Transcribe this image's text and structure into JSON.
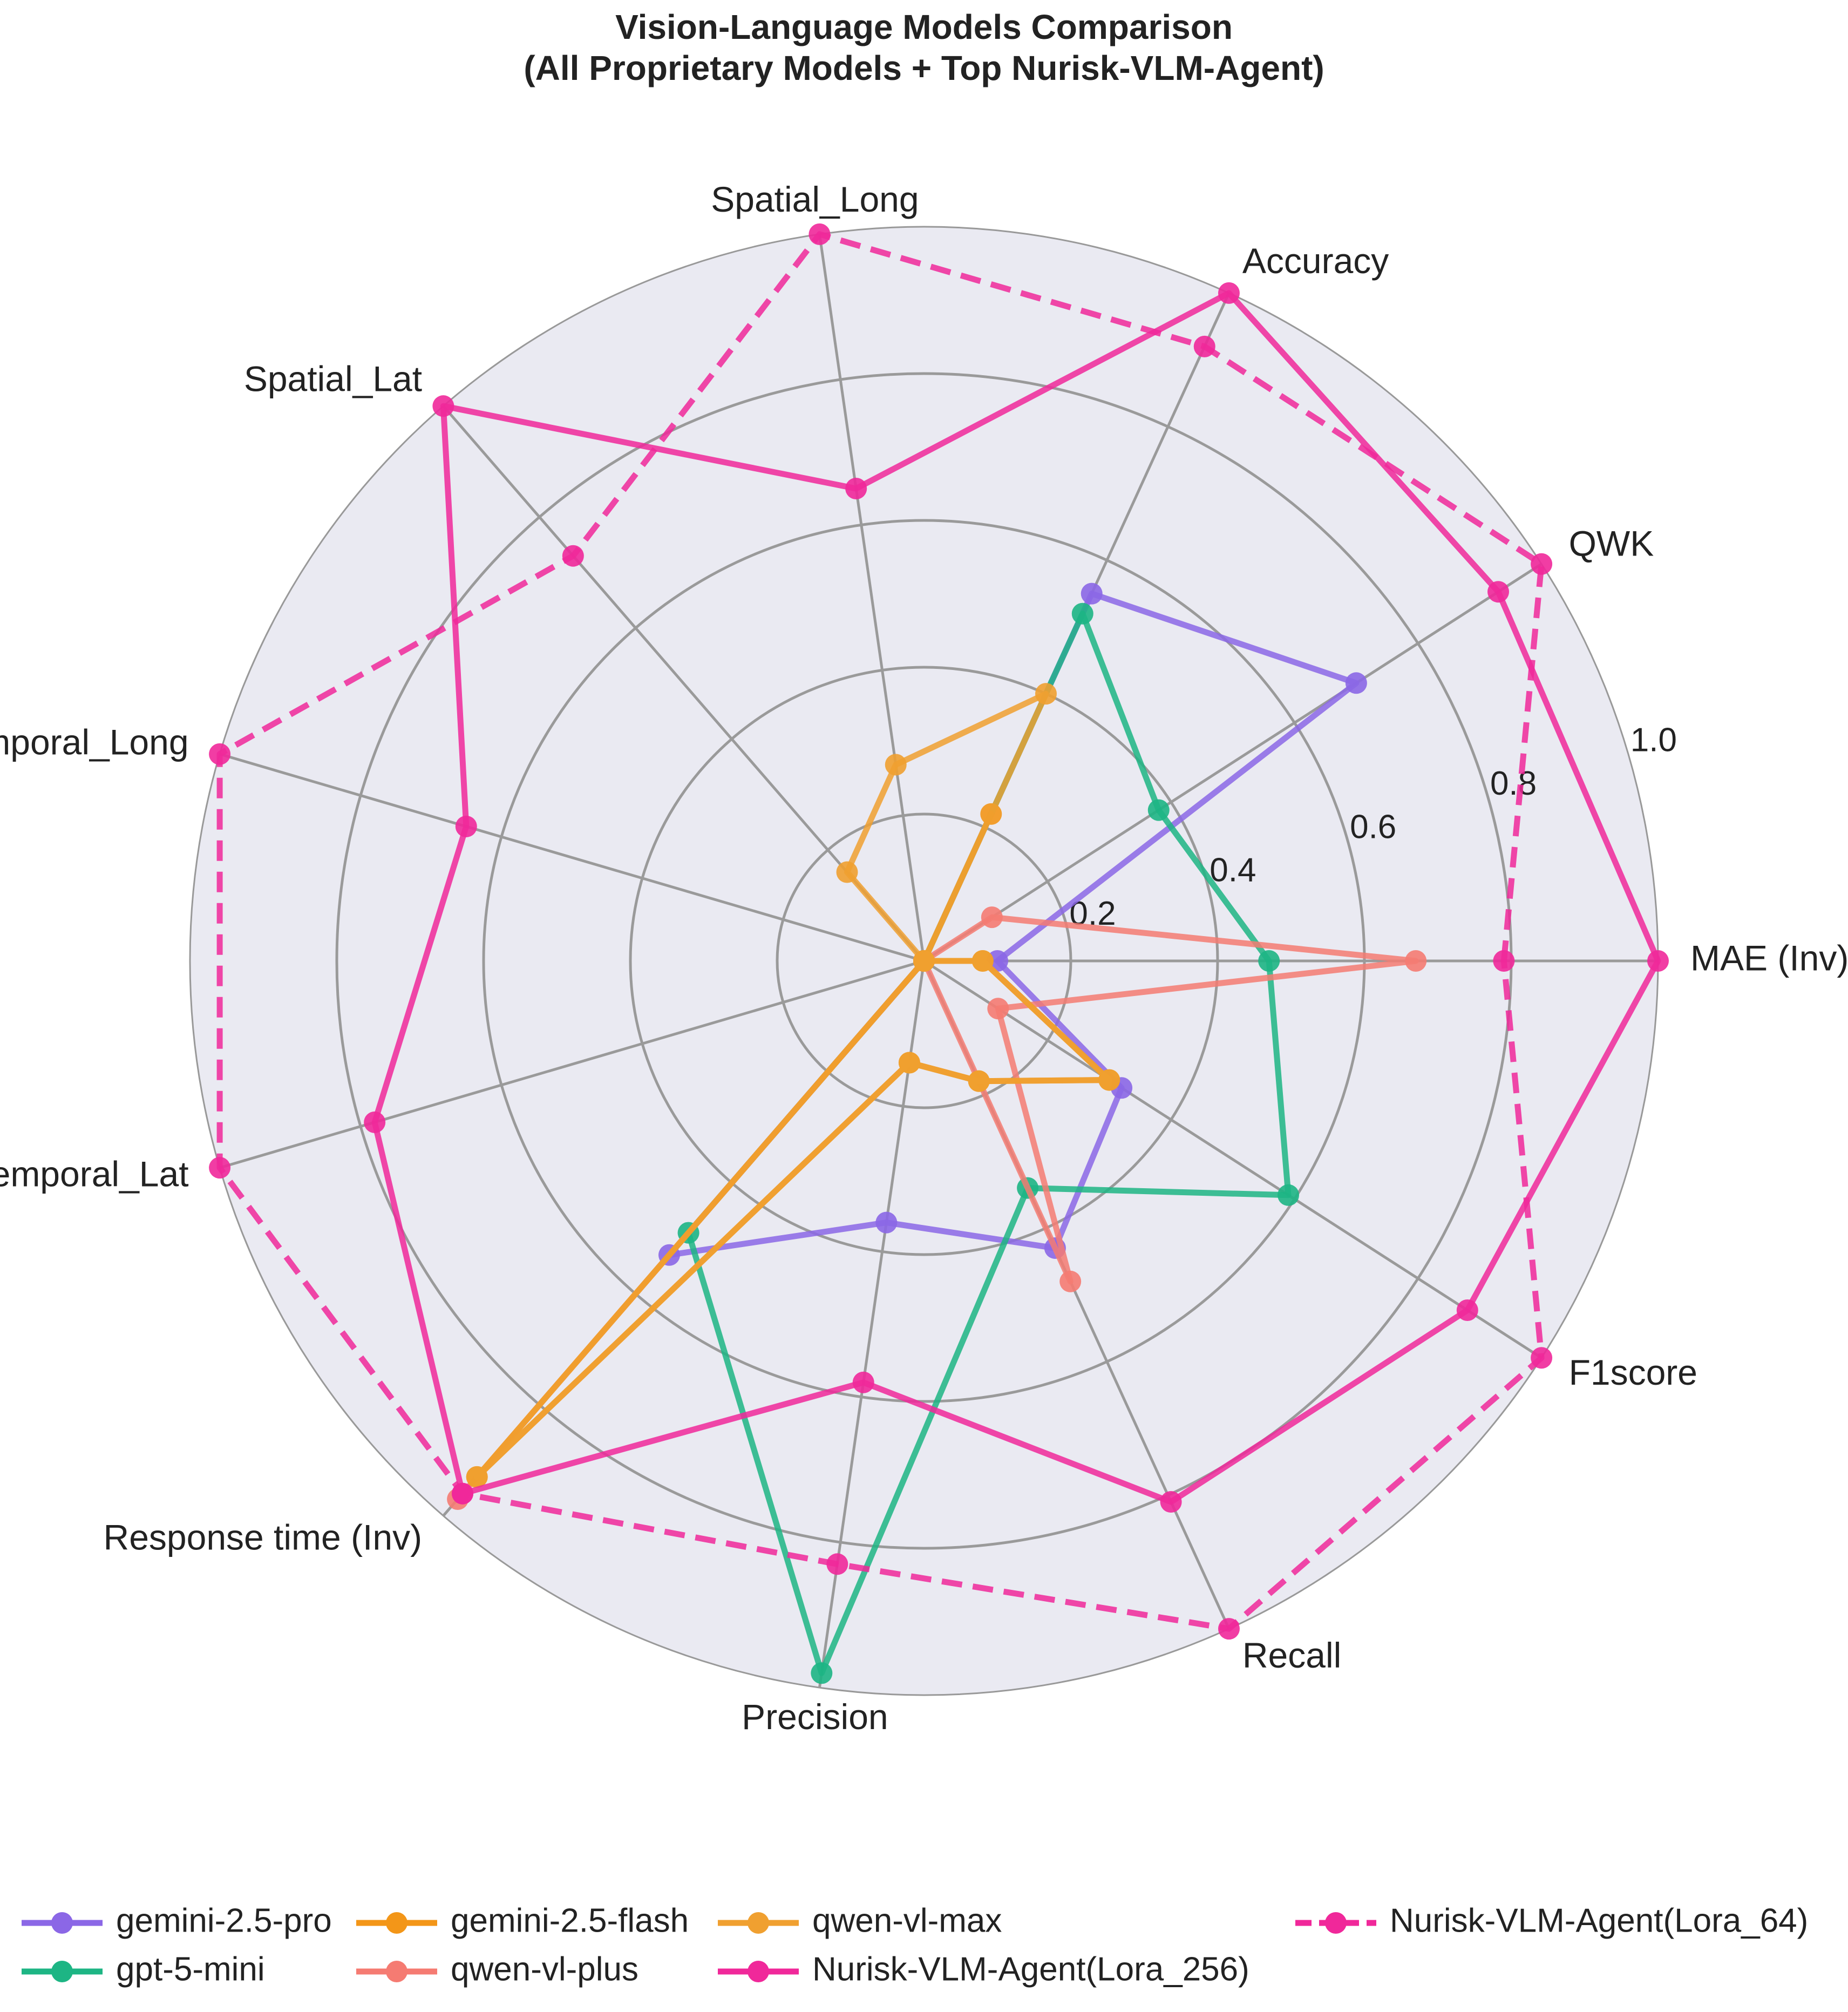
{
  "chart_data": {
    "type": "radar",
    "title_lines": [
      "Vision-Language Models Comparison",
      "(All Proprietary Models + Top Nurisk-VLM-Agent)"
    ],
    "axes": [
      "MAE (Inv)",
      "QWK",
      "Accuracy",
      "Spatial_Long",
      "Spatial_Lat",
      "Temporal_Long",
      "Temporal_Lat",
      "Response time (Inv)",
      "Precision",
      "Recall",
      "F1score"
    ],
    "rlim": [
      0,
      1.0
    ],
    "ticks": [
      {
        "value": 0.2,
        "label": "0.2"
      },
      {
        "value": 0.4,
        "label": "0.4"
      },
      {
        "value": 0.6,
        "label": "0.6"
      },
      {
        "value": 0.8,
        "label": "0.8"
      },
      {
        "value": 1.0,
        "label": "1.0"
      }
    ],
    "grid": true,
    "legend_position": "bottom",
    "series": [
      {
        "name": "gemini-2.5-pro",
        "color": "#8b67e6",
        "dash": "solid",
        "values": [
          0.1,
          0.7,
          0.55,
          0.0,
          0.0,
          0.0,
          0.0,
          0.53,
          0.36,
          0.43,
          0.32
        ]
      },
      {
        "name": "gpt-5-mini",
        "color": "#1db584",
        "dash": "solid",
        "values": [
          0.47,
          0.38,
          0.52,
          0.0,
          0.0,
          0.0,
          0.0,
          0.49,
          0.98,
          0.34,
          0.59
        ]
      },
      {
        "name": "qwen-vl-plus",
        "color": "#f57b72",
        "dash": "solid",
        "values": [
          0.67,
          0.11,
          0.0,
          0.0,
          0.0,
          0.0,
          0.0,
          0.97,
          0.0,
          0.48,
          0.12
        ]
      },
      {
        "name": "gemini-2.5-flash",
        "color": "#f39618",
        "dash": "solid",
        "values": [
          0.08,
          0.0,
          0.22,
          0.0,
          0.0,
          0.0,
          0.0,
          0.93,
          0.14,
          0.18,
          0.3
        ]
      },
      {
        "name": "qwen-vl-max",
        "color": "#f0a030",
        "dash": "solid",
        "values": [
          0.08,
          0.0,
          0.4,
          0.27,
          0.16,
          0.0,
          0.0,
          0.93,
          0.14,
          0.18,
          0.3
        ]
      },
      {
        "name": "Nurisk-VLM-Agent(Lora_256)",
        "color": "#f0289a",
        "dash": "solid",
        "values": [
          1.0,
          0.93,
          1.0,
          0.65,
          1.0,
          0.65,
          0.78,
          0.96,
          0.58,
          0.81,
          0.88
        ]
      },
      {
        "name": "Nurisk-VLM-Agent(Lora_64)",
        "color": "#f0289a",
        "dash": "dashed",
        "values": [
          0.79,
          1.0,
          0.92,
          1.0,
          0.73,
          1.0,
          1.0,
          0.96,
          0.83,
          1.0,
          1.0
        ]
      }
    ],
    "legend_layout": [
      [
        "gemini-2.5-pro",
        "gemini-2.5-flash",
        "qwen-vl-max",
        "Nurisk-VLM-Agent(Lora_64)"
      ],
      [
        "gpt-5-mini",
        "qwen-vl-plus",
        "Nurisk-VLM-Agent(Lora_256)"
      ]
    ]
  }
}
